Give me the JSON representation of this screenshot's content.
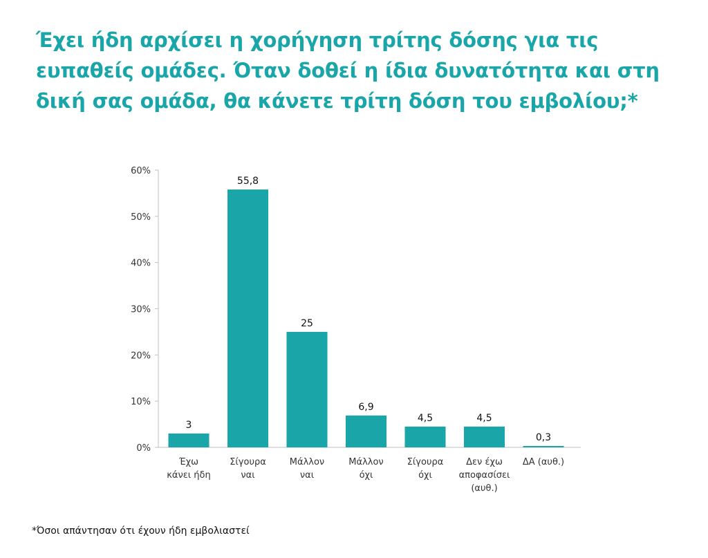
{
  "title": {
    "line1": "Έχει ήδη αρχίσει η χορήγηση τρίτης δόσης για τις",
    "line2": "ευπαθείς ομάδες. Όταν δοθεί η ίδια δυνατότητα και στη",
    "line3": "δική σας ομάδα, θα κάνετε τρίτη δόση του εμβολίου;*"
  },
  "footnote": "*Όσοι απάντησαν ότι έχουν ήδη εμβολιαστεί",
  "chart_data": {
    "type": "bar",
    "categories": [
      [
        "Έχω",
        "κάνει ήδη"
      ],
      [
        "Σίγουρα",
        "ναι"
      ],
      [
        "Μάλλον",
        "ναι"
      ],
      [
        "Μάλλον",
        "όχι"
      ],
      [
        "Σίγουρα",
        "όχι"
      ],
      [
        "Δεν έχω",
        "αποφασίσει",
        "(αυθ.)"
      ],
      [
        "ΔΑ (αυθ.)"
      ]
    ],
    "values": [
      3,
      55.8,
      25,
      6.9,
      4.5,
      4.5,
      0.3
    ],
    "data_labels": [
      "3",
      "55,8",
      "25",
      "6,9",
      "4,5",
      "4,5",
      "0,3"
    ],
    "ylim": [
      0,
      60
    ],
    "yticks": [
      "0%",
      "10%",
      "20%",
      "30%",
      "40%",
      "50%",
      "60%"
    ],
    "grid": false,
    "bar_color": "#1aa6a9",
    "axis_color": "#bfbfbf"
  }
}
